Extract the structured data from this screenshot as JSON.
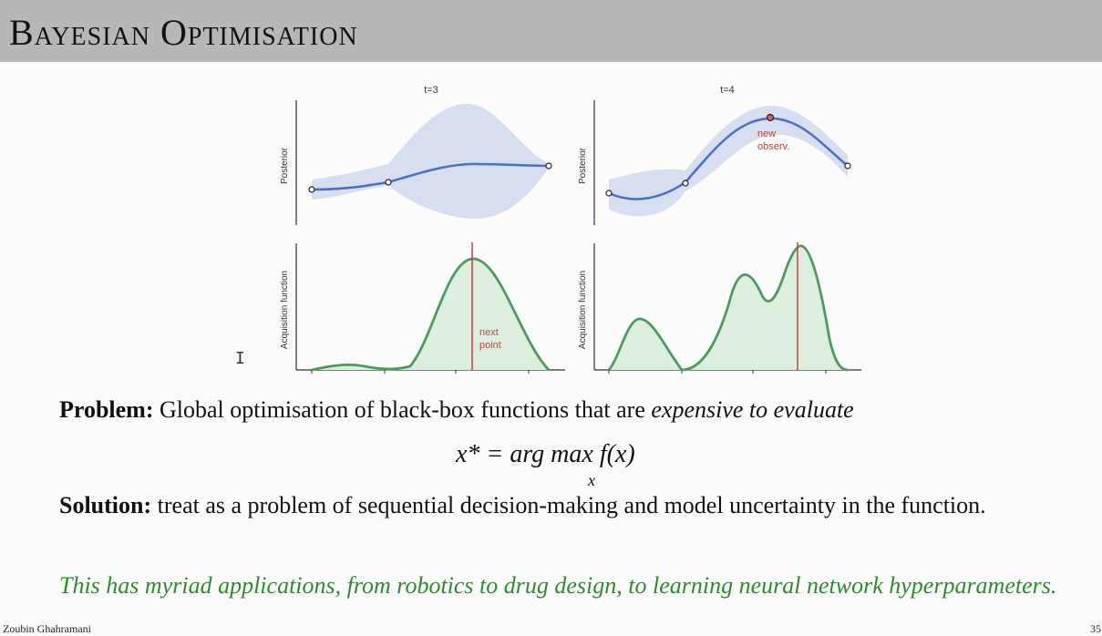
{
  "slide": {
    "title": "Bayesian Optimisation",
    "footer_author": "Zoubin Ghahramani",
    "page_number": "35"
  },
  "figure": {
    "panels": [
      {
        "title": "t=3",
        "top_ylabel": "Posterior",
        "bottom_ylabel": "Acquisition function",
        "bottom_annotation": [
          "next",
          "point"
        ]
      },
      {
        "title": "t=4",
        "top_ylabel": "Posterior",
        "bottom_ylabel": "Acquisition function",
        "top_annotation": [
          "new",
          "observ."
        ]
      }
    ],
    "colors": {
      "mean": "#4a6fc4",
      "band": "#d6def0",
      "acq_line": "#4e9a5e",
      "acq_fill": "#dcefdf",
      "marker": "#c0453c"
    }
  },
  "text": {
    "problem_label": "Problem:",
    "problem_text": " Global optimisation of black-box functions that are ",
    "problem_italic": "expensive to evaluate",
    "formula_lhs": "x* = arg max f(x)",
    "formula_sub": "x",
    "solution_label": "Solution:",
    "solution_text": " treat as a problem of sequential decision-making and model uncertainty in the function.",
    "applications": "This has myriad applications, from robotics to drug design, to learning neural network hyperparameters."
  }
}
